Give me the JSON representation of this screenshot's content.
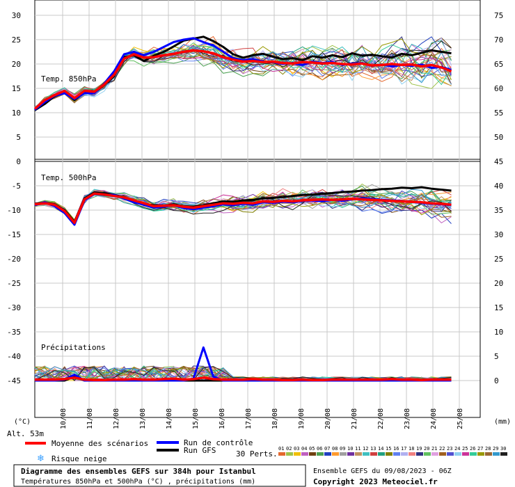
{
  "chart_data": {
    "type": "line",
    "title": "Diagramme des ensembles GEFS sur 384h pour Istanbul",
    "subtitle": "Températures 850hPa et 500hPa (°C) , précipitations (mm)",
    "altitude": "Alt. 53m",
    "left_axis_unit": "(°C)",
    "right_axis_unit": "(mm)",
    "copyright": "Copyright 2023 Meteociel.fr",
    "ensemble_run": "Ensemble GEFS du 09/08/2023 - 06Z",
    "perturbation_count_label": "30 Perts.",
    "x_tick_labels": [
      "10/08",
      "11/08",
      "12/08",
      "13/08",
      "14/08",
      "15/08",
      "16/08",
      "17/08",
      "18/08",
      "19/08",
      "20/08",
      "21/08",
      "22/08",
      "23/08",
      "24/08",
      "25/08"
    ],
    "left_ticks": [
      "30",
      "25",
      "20",
      "15",
      "10",
      "5",
      "0",
      "-5",
      "-10",
      "-15",
      "-20",
      "-25",
      "-30",
      "-35",
      "-40",
      "-45"
    ],
    "right_ticks": [
      "75",
      "70",
      "65",
      "60",
      "55",
      "50",
      "45",
      "40",
      "35",
      "30",
      "25",
      "20",
      "15",
      "10",
      "5",
      "0"
    ],
    "colors": {
      "mean": "#ff0000",
      "control": "#0000ff",
      "gfs": "#000000",
      "perturbations": [
        "#e4682e",
        "#9ec24a",
        "#f0c000",
        "#c060c0",
        "#704010",
        "#4aa050",
        "#2040c0",
        "#ff9a2e",
        "#a0a0a0",
        "#7030a0",
        "#c09060",
        "#40c0c0",
        "#d04040",
        "#20a080",
        "#808000",
        "#6080f0",
        "#b0b0f0",
        "#f08080",
        "#303080",
        "#60c060",
        "#e0a0e0",
        "#a06020",
        "#5050d0",
        "#90d0f0",
        "#cc3399",
        "#33cc99",
        "#999900",
        "#996633",
        "#3399cc",
        "#202020"
      ]
    },
    "panels": [
      {
        "name": "Temp. 850hPa",
        "ylim": [
          0,
          32
        ],
        "unit": "°C",
        "series": [
          {
            "name": "Moyenne des scénarios",
            "values": [
              10.8,
              12.6,
              13.6,
              14.5,
              13,
              14.5,
              14.3,
              15.8,
              17.8,
              21.1,
              22,
              21.3,
              21.4,
              21.8,
              22.1,
              22.5,
              22.8,
              22.6,
              22.2,
              21.4,
              20.9,
              20.5,
              20.6,
              20.4,
              20.5,
              20.2,
              20.1,
              20.4,
              20.3,
              20.1,
              20.2,
              20,
              19.9,
              20.1,
              19.7,
              19.8,
              20,
              19.8,
              19.9,
              19.5,
              19.8,
              19.3,
              18.5
            ]
          },
          {
            "name": "Run de contrôle",
            "values": [
              10.6,
              12.2,
              13.5,
              14,
              12.8,
              14,
              14,
              16,
              18.5,
              22,
              22.5,
              21.8,
              22.5,
              23.5,
              24.5,
              25,
              25.3,
              24.5,
              23.8,
              22.5,
              21.2,
              20.8,
              21,
              20.5,
              20.4,
              20,
              20.2,
              19.8,
              20.5,
              20.2,
              20.4,
              19.8,
              20.1,
              20.2,
              19.6,
              19.9,
              19.5,
              19.8,
              19.6,
              19.9,
              19.2,
              19.4,
              18.8
            ]
          },
          {
            "name": "Run GFS",
            "values": [
              10.5,
              11.8,
              13.4,
              14.2,
              12.6,
              14.2,
              14.1,
              15.7,
              17.5,
              21.4,
              21.8,
              20.6,
              21.7,
              22.5,
              23.6,
              24.8,
              25.2,
              25.6,
              24.7,
              23.5,
              22,
              21.3,
              21.8,
              22.1,
              21.5,
              21,
              21.2,
              20.8,
              21.6,
              21.3,
              21.8,
              21.4,
              22.2,
              21.7,
              21.9,
              21.6,
              21.3,
              22.1,
              21.8,
              22.3,
              22.8,
              22.5,
              22.2
            ]
          }
        ]
      },
      {
        "name": "Temp. 500hPa",
        "ylim": [
          -32,
          8
        ],
        "unit": "°C",
        "series": [
          {
            "name": "Moyenne des scénarios",
            "values": [
              -8.8,
              -8.6,
              -8.9,
              -10.2,
              -12.6,
              -7.8,
              -6.6,
              -6.8,
              -7.1,
              -7.4,
              -8,
              -8.6,
              -9.2,
              -9.1,
              -9,
              -9.3,
              -9.5,
              -9.2,
              -8.9,
              -8.6,
              -8.7,
              -8.5,
              -8.6,
              -8.2,
              -8.3,
              -8.1,
              -8.2,
              -8,
              -7.9,
              -7.8,
              -7.9,
              -7.8,
              -7.7,
              -7.8,
              -7.9,
              -8,
              -8.1,
              -8.2,
              -8.3,
              -8.4,
              -8.6,
              -8.7,
              -8.9
            ]
          },
          {
            "name": "Run de contrôle",
            "values": [
              -9,
              -8.4,
              -9.2,
              -10.6,
              -13,
              -8,
              -6.7,
              -6.9,
              -6.9,
              -7.6,
              -8.4,
              -8.9,
              -9.5,
              -9.3,
              -9,
              -9.6,
              -9.8,
              -9.5,
              -9.2,
              -8.8,
              -9,
              -8.7,
              -8.9,
              -8.4,
              -8.5,
              -8.3,
              -8.4,
              -8.1,
              -8,
              -8.2,
              -7.9,
              -8.1,
              -7.8,
              -7.6,
              -7.7,
              -7.9,
              -8,
              -8.1,
              -8.3,
              -8.5,
              -8.7,
              -8.8,
              -9
            ]
          },
          {
            "name": "Run GFS",
            "values": [
              -8.7,
              -8.5,
              -8.8,
              -10,
              -12.4,
              -7.6,
              -6.4,
              -6.6,
              -7,
              -7.3,
              -8.2,
              -8.8,
              -9,
              -9.1,
              -8.8,
              -9.2,
              -9.3,
              -9,
              -8.6,
              -8.2,
              -8.3,
              -8,
              -7.9,
              -7.6,
              -7.5,
              -7.3,
              -7.1,
              -6.9,
              -6.8,
              -6.6,
              -6.5,
              -6.3,
              -6.2,
              -6,
              -5.9,
              -5.7,
              -5.6,
              -5.4,
              -5.5,
              -5.3,
              -5.6,
              -5.8,
              -6
            ]
          }
        ]
      },
      {
        "name": "Précipitations",
        "ylim": [
          0,
          45
        ],
        "unit": "mm",
        "series": [
          {
            "name": "Moyenne des scénarios",
            "values": [
              0.2,
              0.2,
              0.2,
              0.3,
              0.6,
              0.2,
              0.1,
              0.1,
              0.2,
              0.2,
              0.3,
              0.2,
              0.2,
              0.3,
              0.4,
              0.2,
              0.3,
              0.6,
              0.3,
              0.2,
              0.2,
              0.2,
              0.3,
              0.2,
              0.2,
              0.1,
              0.1,
              0.2,
              0.1,
              0.1,
              0.2,
              0.2,
              0.2,
              0.2,
              0.2,
              0.2,
              0.3,
              0.2,
              0.2,
              0.1,
              0.2,
              0.2,
              0.2
            ]
          },
          {
            "name": "Run de contrôle",
            "values": [
              0,
              0,
              0,
              0.2,
              1.2,
              0,
              0,
              0,
              0,
              0,
              0,
              0,
              0,
              0,
              0,
              0,
              0.4,
              6.8,
              0.8,
              0,
              0,
              0,
              0,
              0,
              0,
              0,
              0,
              0,
              0,
              0,
              0,
              0,
              0,
              0,
              0,
              0,
              0,
              0,
              0,
              0,
              0,
              0,
              0
            ]
          },
          {
            "name": "Run GFS",
            "values": [
              0,
              0,
              0,
              0,
              0.8,
              0,
              0,
              0,
              0,
              0,
              0,
              0,
              0,
              0,
              0,
              0,
              0,
              0,
              0,
              0,
              0,
              0,
              0,
              0,
              0,
              0,
              0,
              0,
              0,
              0,
              0,
              0,
              0,
              0,
              0,
              0,
              0,
              0,
              0,
              0,
              0,
              0,
              0
            ]
          }
        ]
      }
    ]
  },
  "legend": {
    "mean_label": "Moyenne des scénarios",
    "control_label": "Run de contrôle",
    "gfs_label": "Run GFS",
    "snow_label": "Risque neige",
    "snow_icon": "snowflake-icon",
    "pert_numbers": [
      "01",
      "02",
      "03",
      "04",
      "05",
      "06",
      "07",
      "08",
      "09",
      "10",
      "11",
      "12",
      "13",
      "14",
      "15",
      "16",
      "17",
      "18",
      "19",
      "20",
      "21",
      "22",
      "23",
      "24",
      "25",
      "26",
      "27",
      "28",
      "29",
      "30"
    ]
  }
}
